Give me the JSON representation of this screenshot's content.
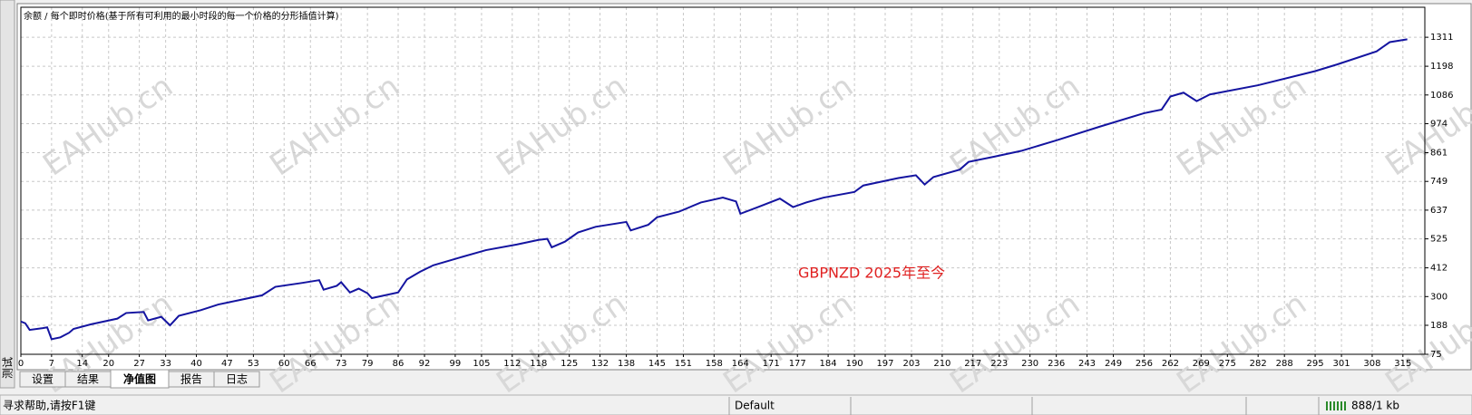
{
  "chart_data": {
    "type": "line",
    "title": "余额 / 每个即时价格(基于所有可利用的最小时段的每一个价格的分形插值计算)",
    "annotation": "GBPNZD 2025年至今",
    "watermark": "EAHub.cn",
    "x": [
      0,
      1,
      2,
      5,
      6,
      7,
      9,
      11,
      12,
      16,
      22,
      24,
      28,
      29,
      32,
      34,
      36,
      41,
      45,
      50,
      55,
      58,
      64,
      68,
      69,
      72,
      73,
      75,
      77,
      79,
      80,
      86,
      88,
      91,
      94,
      100,
      106,
      113,
      118,
      120,
      121,
      124,
      127,
      131,
      138,
      139,
      143,
      145,
      150,
      155,
      160,
      163,
      164,
      168,
      173,
      176,
      179,
      183,
      190,
      192,
      200,
      204,
      206,
      208,
      214,
      216,
      222,
      228,
      236,
      246,
      256,
      260,
      262,
      265,
      268,
      271,
      282,
      295,
      300,
      309,
      312,
      316
    ],
    "series": [
      {
        "name": "余额",
        "color": "#1414a0",
        "values": [
          203,
          196,
          170,
          177,
          180,
          134,
          141,
          159,
          174,
          192,
          214,
          236,
          240,
          207,
          221,
          188,
          225,
          247,
          269,
          287,
          305,
          338,
          353,
          364,
          327,
          342,
          356,
          316,
          331,
          313,
          294,
          316,
          367,
          397,
          422,
          452,
          481,
          503,
          521,
          525,
          492,
          514,
          550,
          572,
          591,
          558,
          580,
          609,
          631,
          667,
          686,
          671,
          623,
          649,
          682,
          649,
          667,
          686,
          708,
          733,
          762,
          773,
          737,
          766,
          795,
          825,
          846,
          868,
          909,
          963,
          1015,
          1029,
          1080,
          1095,
          1062,
          1088,
          1124,
          1179,
          1205,
          1256,
          1292,
          1303
        ]
      }
    ],
    "xlim": [
      0,
      320
    ],
    "xticks": [
      0,
      7,
      14,
      20,
      27,
      33,
      40,
      47,
      53,
      60,
      66,
      73,
      79,
      86,
      92,
      99,
      105,
      112,
      118,
      125,
      132,
      138,
      145,
      151,
      158,
      164,
      171,
      177,
      184,
      190,
      197,
      203,
      210,
      217,
      223,
      230,
      236,
      243,
      249,
      256,
      262,
      269,
      275,
      282,
      288,
      295,
      301,
      308,
      315
    ],
    "ylim": [
      75,
      1428
    ],
    "yticks": [
      75,
      188,
      300,
      412,
      525,
      637,
      749,
      861,
      974,
      1086,
      1198,
      1311
    ],
    "grid": true
  },
  "ui": {
    "side_tab": "测试",
    "tabs": [
      "设置",
      "结果",
      "净值图",
      "报告",
      "日志"
    ],
    "active_tab": 2,
    "status": [
      "寻求帮助,请按F1键",
      "Default",
      "888/1 kb"
    ]
  }
}
